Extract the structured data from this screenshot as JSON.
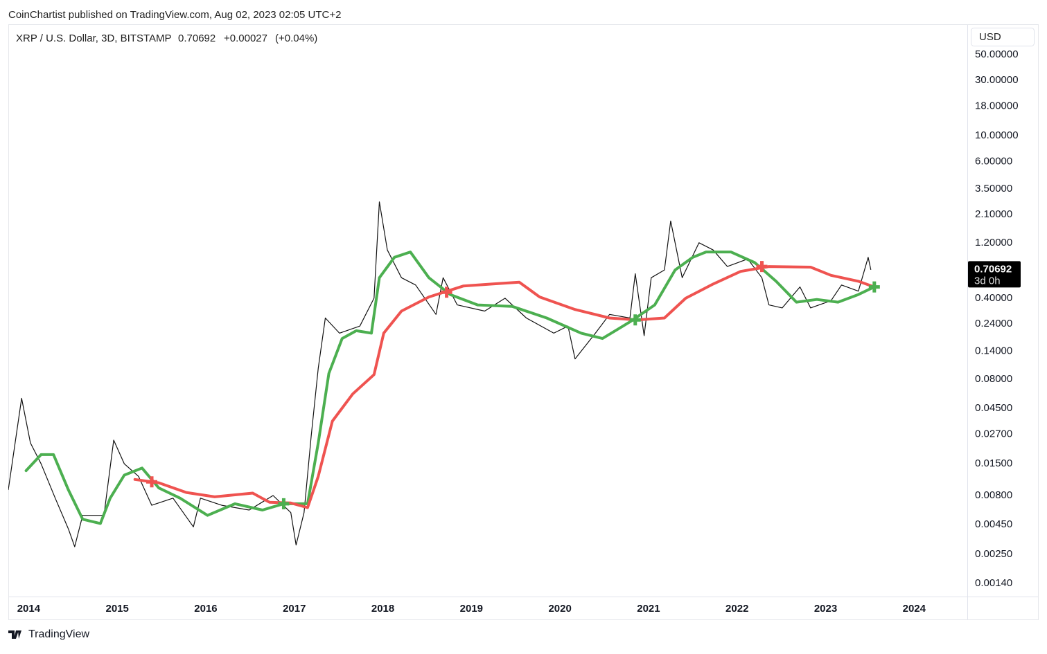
{
  "header": {
    "publisher": "CoinChartist published on TradingView.com, Aug 02, 2023 02:05 UTC+2"
  },
  "footer": {
    "brand": "TradingView"
  },
  "chart_data": {
    "type": "line",
    "symbol": "XRP / U.S. Dollar, 3D, BITSTAMP",
    "last_price": 0.70692,
    "change": "+0.00027",
    "change_pct": "(+0.04%)",
    "countdown": "3d 0h",
    "currency": "USD",
    "log_scale": true,
    "grid": false,
    "xlim": [
      2013.77,
      2024.6
    ],
    "xticks": [
      2014,
      2015,
      2016,
      2017,
      2018,
      2019,
      2020,
      2021,
      2022,
      2023,
      2024
    ],
    "ylim": [
      0.00108,
      55
    ],
    "yticks": [
      {
        "value": 50,
        "label": "50.00000"
      },
      {
        "value": 30,
        "label": "30.00000"
      },
      {
        "value": 18,
        "label": "18.00000"
      },
      {
        "value": 10,
        "label": "10.00000"
      },
      {
        "value": 6,
        "label": "6.00000"
      },
      {
        "value": 3.5,
        "label": "3.50000"
      },
      {
        "value": 2.1,
        "label": "2.10000"
      },
      {
        "value": 1.2,
        "label": "1.20000"
      },
      {
        "value": 0.4,
        "label": "0.40000"
      },
      {
        "value": 0.24,
        "label": "0.24000"
      },
      {
        "value": 0.14,
        "label": "0.14000"
      },
      {
        "value": 0.08,
        "label": "0.08000"
      },
      {
        "value": 0.045,
        "label": "0.04500"
      },
      {
        "value": 0.027,
        "label": "0.02700"
      },
      {
        "value": 0.015,
        "label": "0.01500"
      },
      {
        "value": 0.008,
        "label": "0.00800"
      },
      {
        "value": 0.0045,
        "label": "0.00450"
      },
      {
        "value": 0.0025,
        "label": "0.00250"
      },
      {
        "value": 0.0014,
        "label": "0.00140"
      }
    ],
    "series": [
      {
        "color": "#111111",
        "width": 1.2,
        "x": [
          2013.77,
          2013.92,
          2014.02,
          2014.14,
          2014.3,
          2014.45,
          2014.52,
          2014.61,
          2014.85,
          2014.96,
          2015.08,
          2015.24,
          2015.39,
          2015.63,
          2015.86,
          2015.94,
          2016.18,
          2016.49,
          2016.76,
          2016.96,
          2017.02,
          2017.11,
          2017.19,
          2017.27,
          2017.35,
          2017.51,
          2017.74,
          2017.9,
          2017.96,
          2018.05,
          2018.21,
          2018.37,
          2018.6,
          2018.68,
          2018.84,
          2019.15,
          2019.38,
          2019.62,
          2019.93,
          2020.09,
          2020.17,
          2020.4,
          2020.56,
          2020.79,
          2020.85,
          2020.95,
          2021.03,
          2021.18,
          2021.25,
          2021.38,
          2021.57,
          2021.73,
          2021.89,
          2022.12,
          2022.28,
          2022.36,
          2022.51,
          2022.71,
          2022.83,
          2023.06,
          2023.18,
          2023.37,
          2023.48,
          2023.51
        ],
        "values": [
          0.009,
          0.055,
          0.0227,
          0.015,
          0.0076,
          0.0041,
          0.0029,
          0.0054,
          0.0054,
          0.024,
          0.015,
          0.0117,
          0.0066,
          0.0076,
          0.0043,
          0.0076,
          0.0066,
          0.006,
          0.008,
          0.0057,
          0.003,
          0.0057,
          0.026,
          0.1,
          0.27,
          0.2,
          0.23,
          0.4,
          2.7,
          1.04,
          0.6,
          0.52,
          0.29,
          0.6,
          0.35,
          0.31,
          0.4,
          0.27,
          0.2,
          0.23,
          0.12,
          0.2,
          0.29,
          0.27,
          0.65,
          0.19,
          0.6,
          0.7,
          1.85,
          0.6,
          1.2,
          1.04,
          0.75,
          0.87,
          0.6,
          0.35,
          0.33,
          0.5,
          0.33,
          0.38,
          0.52,
          0.46,
          0.9,
          0.70692
        ]
      },
      {
        "color": "#4caf50",
        "width": 4,
        "x": [
          2013.97,
          2014.14,
          2014.28,
          2014.45,
          2014.61,
          2014.81,
          2014.92,
          2015.08,
          2015.28,
          2015.47,
          2015.71,
          2016.02,
          2016.33,
          2016.64,
          2016.88,
          2017.15,
          2017.27,
          2017.39,
          2017.54,
          2017.7,
          2017.87,
          2017.96,
          2018.13,
          2018.31,
          2018.52,
          2018.76,
          2019.07,
          2019.46,
          2019.85,
          2020.24,
          2020.48,
          2020.79,
          2021.07,
          2021.3,
          2021.5,
          2021.65,
          2021.93,
          2022.2,
          2022.44,
          2022.67,
          2022.9,
          2023.14,
          2023.37,
          2023.55
        ],
        "values": [
          0.0131,
          0.018,
          0.018,
          0.0089,
          0.005,
          0.0046,
          0.0076,
          0.012,
          0.0138,
          0.0093,
          0.0076,
          0.0054,
          0.0068,
          0.006,
          0.0068,
          0.0068,
          0.0227,
          0.09,
          0.18,
          0.21,
          0.2,
          0.6,
          0.9,
          1.0,
          0.6,
          0.43,
          0.35,
          0.34,
          0.27,
          0.2,
          0.18,
          0.25,
          0.35,
          0.7,
          0.9,
          1.0,
          1.0,
          0.81,
          0.56,
          0.37,
          0.39,
          0.37,
          0.43,
          0.5
        ]
      },
      {
        "color": "#ef5350",
        "width": 4,
        "x": [
          2015.2,
          2015.47,
          2015.78,
          2016.1,
          2016.53,
          2016.72,
          2016.96,
          2017.15,
          2017.27,
          2017.43,
          2017.66,
          2017.9,
          2018.01,
          2018.21,
          2018.52,
          2018.91,
          2019.23,
          2019.54,
          2019.77,
          2020.17,
          2020.56,
          2020.87,
          2021.18,
          2021.42,
          2021.73,
          2022.04,
          2022.36,
          2022.83,
          2023.06,
          2023.37,
          2023.55
        ],
        "values": [
          0.011,
          0.0103,
          0.0085,
          0.0078,
          0.0084,
          0.007,
          0.0069,
          0.0063,
          0.0117,
          0.035,
          0.06,
          0.088,
          0.2,
          0.31,
          0.41,
          0.51,
          0.53,
          0.55,
          0.41,
          0.32,
          0.27,
          0.26,
          0.27,
          0.4,
          0.53,
          0.68,
          0.75,
          0.74,
          0.63,
          0.56,
          0.5
        ]
      }
    ],
    "markers": [
      {
        "x": 2015.39,
        "value": 0.0105,
        "color": "#ef5350"
      },
      {
        "x": 2016.88,
        "value": 0.0068,
        "color": "#4caf50"
      },
      {
        "x": 2018.72,
        "value": 0.45,
        "color": "#ef5350"
      },
      {
        "x": 2020.85,
        "value": 0.26,
        "color": "#4caf50"
      },
      {
        "x": 2022.28,
        "value": 0.75,
        "color": "#ef5350"
      },
      {
        "x": 2023.55,
        "value": 0.5,
        "color": "#4caf50"
      }
    ]
  }
}
